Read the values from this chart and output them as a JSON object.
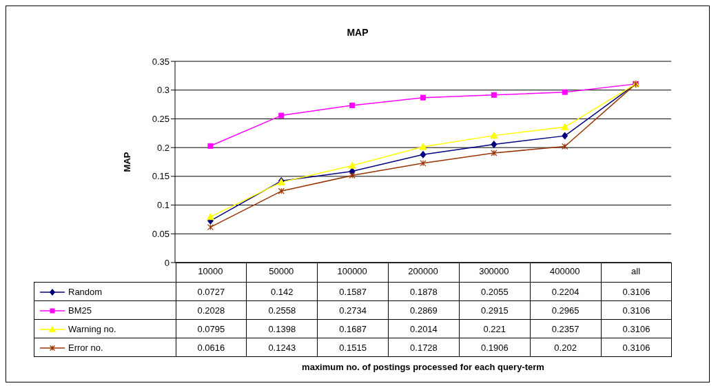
{
  "chart_data": {
    "type": "line",
    "title": "MAP",
    "annotations": [
      "maximum no. of postings processed for each query-term"
    ],
    "ylabel": "MAP",
    "categories": [
      "10000",
      "50000",
      "100000",
      "200000",
      "300000",
      "400000",
      "all"
    ],
    "series": [
      {
        "name": "Random",
        "color": "#000080",
        "marker": "diamond",
        "values": [
          0.0727,
          0.142,
          0.1587,
          0.1878,
          0.2055,
          0.2204,
          0.3106
        ]
      },
      {
        "name": "BM25",
        "color": "#ff00ff",
        "marker": "square",
        "values": [
          0.2028,
          0.2558,
          0.2734,
          0.2869,
          0.2915,
          0.2965,
          0.3106
        ]
      },
      {
        "name": "Warning no.",
        "color": "#ffff00",
        "marker": "triangle",
        "values": [
          0.0795,
          0.1398,
          0.1687,
          0.2014,
          0.221,
          0.2357,
          0.3106
        ]
      },
      {
        "name": "Error no.",
        "color": "#993300",
        "marker": "cross",
        "values": [
          0.0616,
          0.1243,
          0.1515,
          0.1728,
          0.1906,
          0.202,
          0.3106
        ]
      }
    ],
    "ylim": [
      0,
      0.35
    ],
    "yticks": [
      0,
      0.05,
      0.1,
      0.15,
      0.2,
      0.25,
      0.3,
      0.35
    ],
    "grid": "y",
    "legend": "bottom",
    "data_labels": true
  }
}
